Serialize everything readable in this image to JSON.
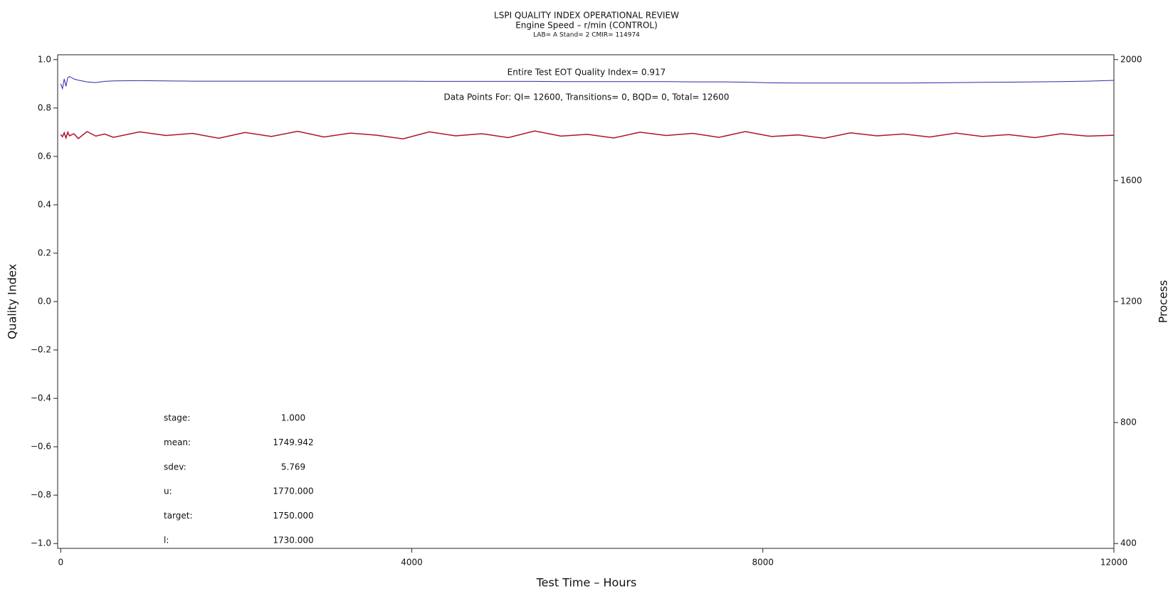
{
  "chart_data": {
    "type": "line",
    "title": "LSPI QUALITY INDEX OPERATIONAL REVIEW",
    "subtitle": "Engine Speed – r/min (CONTROL)",
    "subtitle2": "LAB= A Stand= 2 CMIR= 114974",
    "annotations": [
      "Entire Test EOT Quality Index=  0.917",
      "Data Points For: QI= 12600, Transitions=     0, BQD=     0, Total= 12600"
    ],
    "stats": [
      [
        "stage:",
        "1.000"
      ],
      [
        "mean:",
        "1749.942"
      ],
      [
        "sdev:",
        "5.769"
      ],
      [
        "u:",
        "1770.000"
      ],
      [
        "target:",
        "1750.000"
      ],
      [
        "l:",
        "1730.000"
      ]
    ],
    "x_label": "Test Time – Hours",
    "y_label": "Quality Index",
    "y2_label": "Process",
    "xlim": [
      -35,
      12000
    ],
    "xticks": [
      0,
      4000,
      8000,
      12000
    ],
    "ylim": [
      -1.02,
      1.02
    ],
    "yticks": [
      {
        "value": -1,
        "label": "−1.0"
      },
      {
        "value": -0.8,
        "label": "−0.8"
      },
      {
        "value": -0.6,
        "label": "−0.6"
      },
      {
        "value": -0.4,
        "label": "−0.4"
      },
      {
        "value": -0.2,
        "label": "−0.2"
      },
      {
        "value": 0,
        "label": "0.0"
      },
      0.2,
      0.4,
      0.6,
      0.8,
      {
        "value": 1,
        "label": "1.0"
      }
    ],
    "y2lim": [
      384,
      2016
    ],
    "y2ticks": [
      400,
      800,
      1200,
      1600,
      2000
    ],
    "x": [
      0,
      20,
      40,
      60,
      80,
      100,
      150,
      200,
      300,
      400,
      500,
      600,
      900,
      1200,
      1500,
      1800,
      2100,
      2400,
      2700,
      3000,
      3300,
      3600,
      3900,
      4200,
      4500,
      4800,
      5100,
      5400,
      5700,
      6000,
      6300,
      6600,
      6900,
      7200,
      7500,
      7800,
      8100,
      8400,
      8700,
      9000,
      9300,
      9600,
      9900,
      10200,
      10500,
      10800,
      11100,
      11400,
      11700,
      12000
    ],
    "series": [
      {
        "name": "Quality Index",
        "color": "#2a2aa8",
        "axis": "y",
        "values": [
          0.9,
          0.88,
          0.92,
          0.89,
          0.925,
          0.93,
          0.92,
          0.915,
          0.908,
          0.905,
          0.91,
          0.912,
          0.913,
          0.912,
          0.911,
          0.911,
          0.911,
          0.911,
          0.911,
          0.911,
          0.911,
          0.911,
          0.911,
          0.91,
          0.91,
          0.91,
          0.91,
          0.91,
          0.909,
          0.909,
          0.909,
          0.909,
          0.909,
          0.908,
          0.908,
          0.907,
          0.904,
          0.903,
          0.903,
          0.903,
          0.903,
          0.903,
          0.904,
          0.905,
          0.906,
          0.907,
          0.908,
          0.909,
          0.911,
          0.914
        ]
      },
      {
        "name": "Process",
        "color": "#b0132b",
        "axis": "y2",
        "values": [
          1752,
          1745,
          1758,
          1741,
          1760,
          1748,
          1755,
          1739,
          1762,
          1747,
          1754,
          1743,
          1761,
          1749,
          1756,
          1740,
          1759,
          1746,
          1763,
          1744,
          1757,
          1750,
          1738,
          1761,
          1748,
          1755,
          1742,
          1764,
          1747,
          1753,
          1741,
          1760,
          1749,
          1756,
          1743,
          1762,
          1746,
          1751,
          1740,
          1758,
          1748,
          1754,
          1744,
          1757,
          1746,
          1752,
          1742,
          1755,
          1747,
          1750
        ]
      }
    ]
  }
}
